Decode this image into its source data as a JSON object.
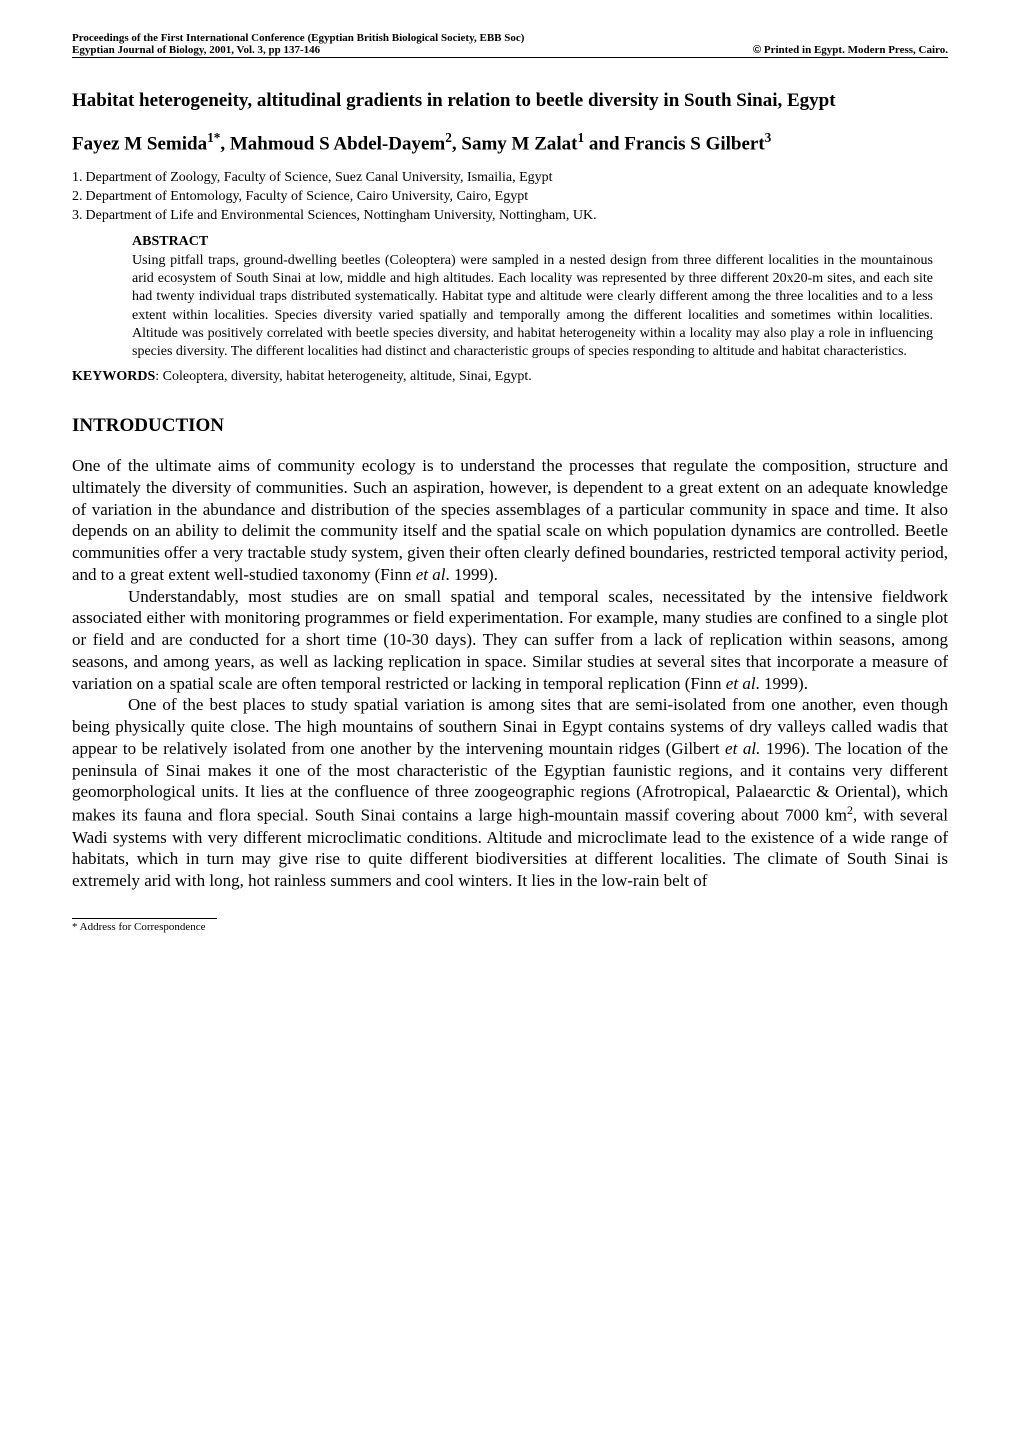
{
  "header": {
    "left_line1": "Proceedings of  the First International Conference (Egyptian British Biological Society, EBB Soc)",
    "left_line2": "Egyptian Journal of Biology, 2001, Vol. 3,  pp 137-146",
    "right_line2_symbol": "©",
    "right_line2_text": " Printed in Egypt. Modern Press, Cairo."
  },
  "title": "Habitat heterogeneity, altitudinal gradients in relation to beetle diversity in South Sinai, Egypt",
  "authors_html": "Fayez M Semida<sup>1*</sup>, Mahmoud S Abdel-Dayem<sup>2</sup>, Samy M Zalat<sup>1</sup> and Francis S Gilbert<sup>3</sup>",
  "affiliations": [
    {
      "num": "1.",
      "text": "Department of Zoology, Faculty of Science, Suez Canal University, Ismailia, Egypt"
    },
    {
      "num": "2.",
      "text": "Department of Entomology, Faculty of Science, Cairo University, Cairo, Egypt"
    },
    {
      "num": "3.",
      "text": "Department of Life and Environmental Sciences, Nottingham University, Nottingham, UK."
    }
  ],
  "abstract": {
    "heading": "ABSTRACT",
    "text": "Using pitfall traps, ground-dwelling beetles (Coleoptera) were sampled in a nested design from three different localities in the mountainous arid ecosystem of South Sinai at low, middle and high altitudes. Each locality was represented by three different 20x20-m sites, and each site had twenty individual traps distributed systematically. Habitat type and altitude were clearly different among the three localities and to a less extent within localities. Species diversity varied spatially and temporally among the different localities and sometimes within localities. Altitude was positively correlated with beetle species diversity, and habitat heterogeneity within a locality may also play a role in influencing species diversity. The different localities had distinct and characteristic groups of species responding to altitude and habitat characteristics."
  },
  "keywords": {
    "label": "KEYWORDS",
    "text": ": Coleoptera, diversity, habitat heterogeneity, altitude, Sinai, Egypt."
  },
  "section_heading": "INTRODUCTION",
  "paragraphs": {
    "p1_pre": "One of the ultimate aims of community ecology is to understand the processes that regulate the composition, structure and ultimately the diversity of communities. Such an aspiration, however, is dependent to a great extent on an adequate knowledge of variation in the abundance and distribution of the species assemblages of a particular community in space and time. It also depends on an ability to delimit the community itself and the spatial scale on which population dynamics are controlled. Beetle communities offer a very tractable study system, given their often clearly defined boundaries, restricted temporal activity period, and to a great extent well-studied taxonomy (Finn ",
    "p1_cite": "et al",
    "p1_post": ". 1999).",
    "p2_pre": "Understandably, most studies are on small spatial and temporal scales, necessitated by the  intensive  fieldwork  associated  either  with  monitoring  programmes  or  field experimentation. For example, many studies are confined to a single plot or field and are conducted for a short time (10-30 days). They can suffer from a lack of replication within seasons, among seasons, and among years, as well as lacking replication in space. Similar studies at several sites that incorporate a measure of variation on a spatial scale are often temporal restricted or lacking in temporal replication (Finn ",
    "p2_cite": "et al",
    "p2_post": ". 1999).",
    "p3_pre": "One of the best places to study spatial variation is among sites that are semi-isolated from one another, even though being physically quite close. The high mountains of southern Sinai in Egypt contains systems of dry valleys called wadis that appear to be relatively isolated from one another by the intervening mountain ridges (Gilbert ",
    "p3_cite": "et al.",
    "p3_post": " 1996). The location of the peninsula of Sinai makes it one of the most characteristic of the Egyptian faunistic regions, and it contains very different  geomorphological units. It lies at the confluence of three zoogeographic regions (Afrotropical, Palaearctic & Oriental), which makes its fauna and flora special. South Sinai contains a large high-mountain massif covering about 7000 km",
    "p3_sup": "2",
    "p3_tail": ", with several Wadi systems with very different microclimatic conditions. Altitude and microclimate lead to the existence of a wide range of habitats, which in turn may give rise to quite different biodiversities at different localities. The climate of South Sinai is extremely arid with long, hot rainless summers and cool winters. It lies in the low-rain belt of"
  },
  "footnote": "* Address for Correspondence"
}
